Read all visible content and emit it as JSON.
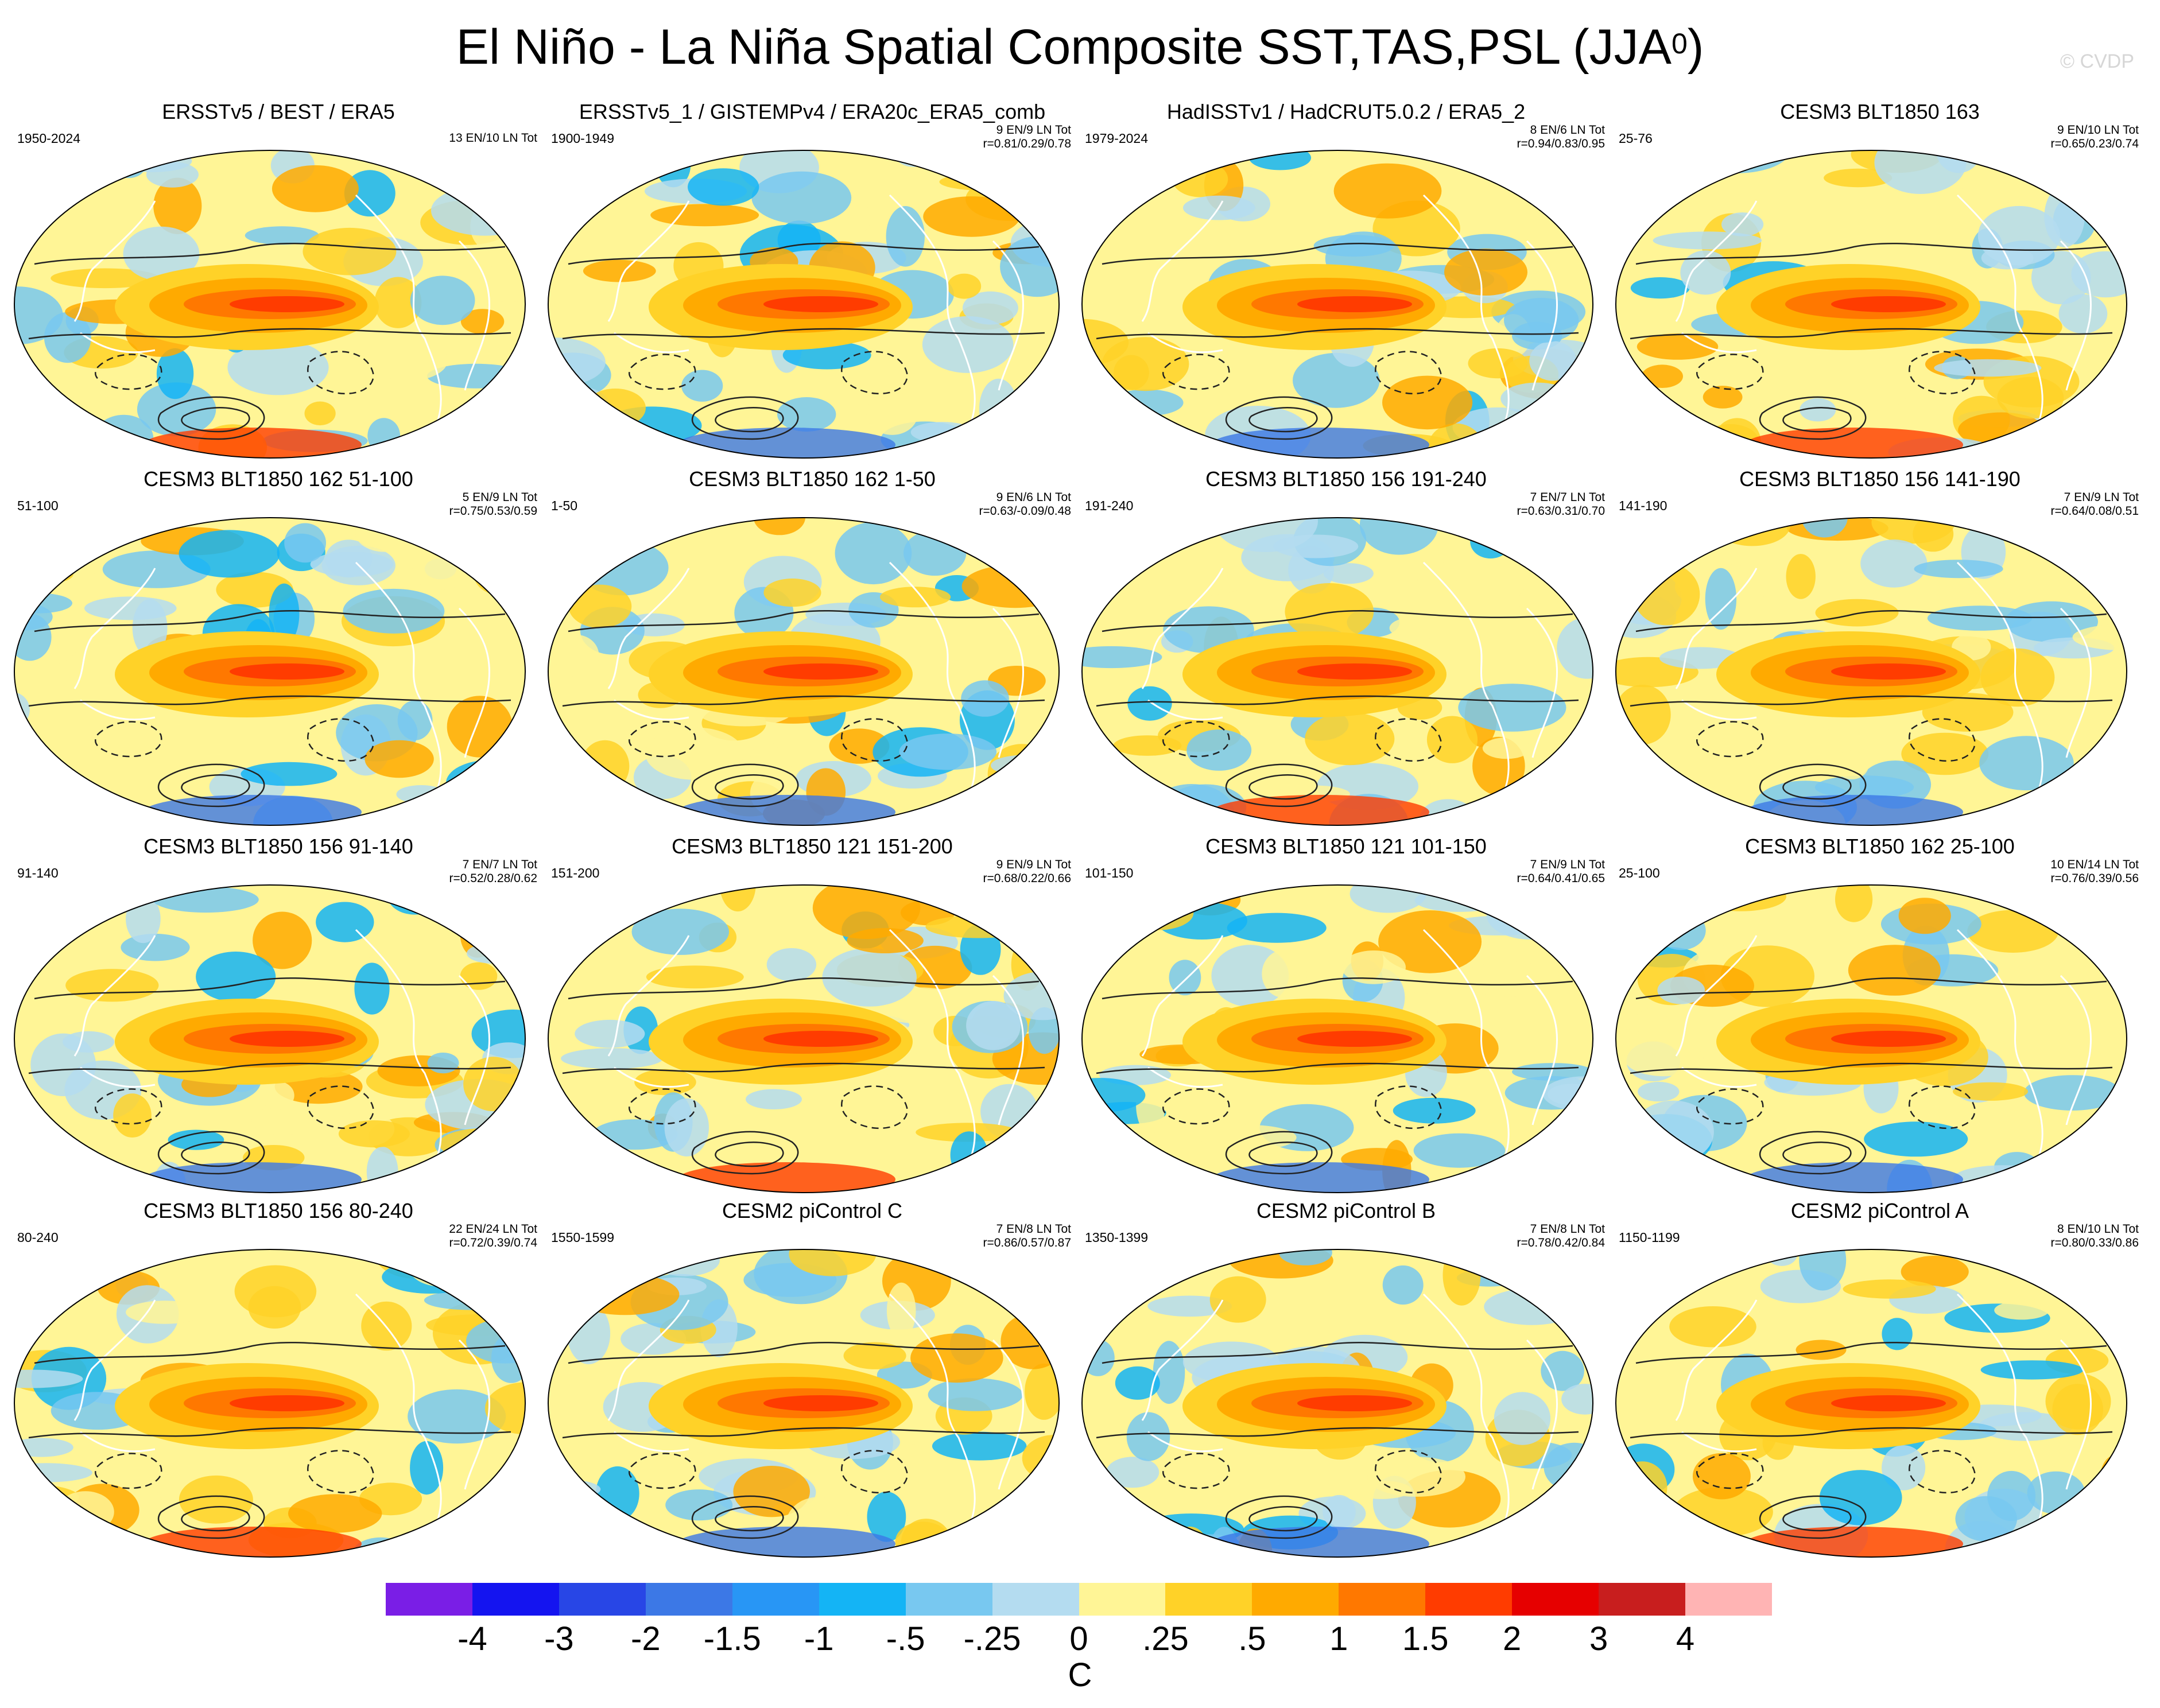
{
  "title": "El Niño - La Niña Spatial Composite SST,TAS,PSL (JJA",
  "title_superscript": "0",
  "title_suffix": ")",
  "watermark": "© CVDP",
  "panels": [
    {
      "title": "ERSSTv5 / BEST / ERA5",
      "years": "1950-2024",
      "count": "13 EN/10 LN Tot",
      "corr": ""
    },
    {
      "title": "ERSSTv5_1 / GISTEMPv4 / ERA20c_ERA5_comb",
      "years": "1900-1949",
      "count": "9 EN/9 LN Tot",
      "corr": "r=0.81/0.29/0.78"
    },
    {
      "title": "HadISSTv1 / HadCRUT5.0.2 / ERA5_2",
      "years": "1979-2024",
      "count": "8 EN/6 LN Tot",
      "corr": "r=0.94/0.83/0.95"
    },
    {
      "title": "CESM3 BLT1850 163",
      "years": "25-76",
      "count": "9 EN/10 LN Tot",
      "corr": "r=0.65/0.23/0.74"
    },
    {
      "title": "CESM3 BLT1850 162 51-100",
      "years": "51-100",
      "count": "5 EN/9 LN Tot",
      "corr": "r=0.75/0.53/0.59"
    },
    {
      "title": "CESM3 BLT1850 162 1-50",
      "years": "1-50",
      "count": "9 EN/6 LN Tot",
      "corr": "r=0.63/-0.09/0.48"
    },
    {
      "title": "CESM3 BLT1850 156 191-240",
      "years": "191-240",
      "count": "7 EN/7 LN Tot",
      "corr": "r=0.63/0.31/0.70"
    },
    {
      "title": "CESM3 BLT1850 156 141-190",
      "years": "141-190",
      "count": "7 EN/9 LN Tot",
      "corr": "r=0.64/0.08/0.51"
    },
    {
      "title": "CESM3 BLT1850 156 91-140",
      "years": "91-140",
      "count": "7 EN/7 LN Tot",
      "corr": "r=0.52/0.28/0.62"
    },
    {
      "title": "CESM3 BLT1850 121 151-200",
      "years": "151-200",
      "count": "9 EN/9 LN Tot",
      "corr": "r=0.68/0.22/0.66"
    },
    {
      "title": "CESM3 BLT1850 121 101-150",
      "years": "101-150",
      "count": "7 EN/9 LN Tot",
      "corr": "r=0.64/0.41/0.65"
    },
    {
      "title": "CESM3 BLT1850 162 25-100",
      "years": "25-100",
      "count": "10 EN/14 LN Tot",
      "corr": "r=0.76/0.39/0.56"
    },
    {
      "title": "CESM3 BLT1850 156 80-240",
      "years": "80-240",
      "count": "22 EN/24 LN Tot",
      "corr": "r=0.72/0.39/0.74"
    },
    {
      "title": "CESM2 piControl C",
      "years": "1550-1599",
      "count": "7 EN/8 LN Tot",
      "corr": "r=0.86/0.57/0.87"
    },
    {
      "title": "CESM2 piControl B",
      "years": "1350-1399",
      "count": "7 EN/8 LN Tot",
      "corr": "r=0.78/0.42/0.84"
    },
    {
      "title": "CESM2 piControl A",
      "years": "1150-1199",
      "count": "8 EN/10 LN Tot",
      "corr": "r=0.80/0.33/0.86"
    }
  ],
  "colorbar": {
    "colors": [
      "#7a1ee6",
      "#1414f0",
      "#2846e6",
      "#3c78e6",
      "#2896f5",
      "#14b4f5",
      "#78c8f0",
      "#b4dcf0",
      "#fff596",
      "#ffd228",
      "#ffaa00",
      "#ff7800",
      "#ff3c00",
      "#e60000",
      "#c81e1e",
      "#ffb4b4"
    ],
    "labels": [
      "-4",
      "-3",
      "-2",
      "-1.5",
      "-1",
      "-.5",
      "-.25",
      "0",
      ".25",
      ".5",
      "1",
      "1.5",
      "2",
      "3",
      "4"
    ],
    "units": "C"
  }
}
